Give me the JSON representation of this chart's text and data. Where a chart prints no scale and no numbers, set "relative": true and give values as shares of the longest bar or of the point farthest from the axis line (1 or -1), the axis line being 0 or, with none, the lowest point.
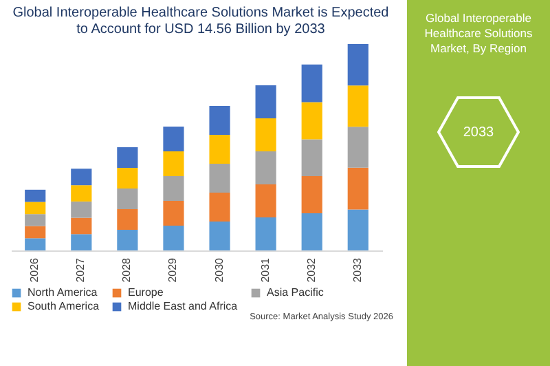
{
  "chart_data": {
    "type": "bar",
    "title": "Global Interoperable Healthcare Solutions Market is Expected to Account for USD 14.56 Billion by 2033",
    "categories": [
      "2026",
      "2027",
      "2028",
      "2029",
      "2030",
      "2031",
      "2032",
      "2033"
    ],
    "stacked": true,
    "relative": true,
    "legend": "bottom",
    "series": [
      {
        "name": "North America",
        "color": "#5b9bd5",
        "values": [
          0.059,
          0.079,
          0.1,
          0.12,
          0.14,
          0.16,
          0.18,
          0.198
        ]
      },
      {
        "name": "Europe",
        "color": "#ed7d31",
        "values": [
          0.059,
          0.079,
          0.1,
          0.12,
          0.14,
          0.16,
          0.18,
          0.203
        ]
      },
      {
        "name": "Asia Pacific",
        "color": "#a5a5a5",
        "values": [
          0.058,
          0.079,
          0.1,
          0.12,
          0.14,
          0.16,
          0.178,
          0.198
        ]
      },
      {
        "name": "South America",
        "color": "#ffc000",
        "values": [
          0.059,
          0.079,
          0.1,
          0.12,
          0.14,
          0.16,
          0.18,
          0.2
        ]
      },
      {
        "name": "Middle East and Africa",
        "color": "#4472c4",
        "values": [
          0.059,
          0.08,
          0.1,
          0.12,
          0.14,
          0.16,
          0.183,
          0.201
        ]
      }
    ],
    "annotations": [
      "Source: Market Analysis Study 2026",
      "Global Interoperable Healthcare Solutions Market, By Region",
      "2033"
    ]
  }
}
